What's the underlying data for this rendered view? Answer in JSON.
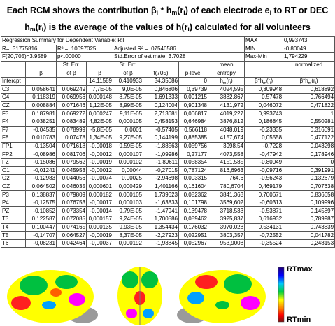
{
  "header": {
    "line1": [
      "Each RCM shows the contribution β",
      "i",
      " * h",
      "m",
      "(r",
      "i",
      ") of each electrode e",
      "i",
      " to RT or DEC"
    ],
    "line2": [
      "h",
      "m",
      "(r",
      "i",
      ") is the average of  the values of h(r",
      "i",
      ") calculated for  all volunteers"
    ]
  },
  "summary": [
    [
      "Regression Summary for Dependent Variable: RT",
      "MAX",
      "0,993743"
    ],
    [
      "R= .31775816",
      "R² = .10097025",
      "Adjusted R² = .07546586",
      "MIN",
      "-0,80049"
    ],
    [
      "F(20,705)=3.9589",
      "p<.00000",
      "Std.Error of estimate: 3.7028",
      "Max-Min",
      "1,794229"
    ]
  ],
  "table": {
    "header_rows": [
      [
        null,
        null,
        "St. Err.",
        null,
        "St. Err.",
        null,
        null,
        "mean",
        null,
        "normalized"
      ],
      [
        null,
        "β",
        "of β",
        "β",
        "of β",
        "t(705)",
        "p-level",
        "entropy",
        null,
        null
      ],
      [
        "Intercpt",
        null,
        null,
        "14,11589",
        "0,410933",
        "34,35086",
        "0",
        [
          "h",
          "m",
          "(r",
          "i",
          ")"
        ],
        [
          "β*h",
          "m",
          "(r",
          "i",
          ")"
        ],
        [
          "β*h",
          "m",
          "(r",
          "i",
          ")"
        ]
      ]
    ],
    "rows": [
      [
        "C3",
        "0,058641",
        "0,069249",
        "7,7E-05",
        "9,0E-05",
        "0,846806",
        "0,39739",
        "4024,595",
        "0,309948",
        "0,618892"
      ],
      [
        "C4",
        "0,118319",
        "0,069956",
        "0,000148",
        "8,75E-05",
        "1,691333",
        "0,091215",
        "3882,867",
        "0,57478",
        "0,766494"
      ],
      [
        "CZ",
        "0,008884",
        "0,071646",
        "1,12E-05",
        "8,99E-05",
        "0,124004",
        "0,901348",
        "4131,972",
        "0,046072",
        "0,471822"
      ],
      [
        "F3",
        "0,187981",
        "0,069272",
        "0,000247",
        "9,11E-05",
        "2,713681",
        "0,006817",
        "4019,227",
        "0,993743",
        "1"
      ],
      [
        "F4",
        "0,038251",
        "0,083489",
        "4,82E-05",
        "0,000105",
        "0,458153",
        "0,646984",
        "3876,812",
        "0,186845",
        "0,550281"
      ],
      [
        "F7",
        "-0,04535",
        "0,078999",
        "-5,8E-05",
        "0,0001",
        "-0,57405",
        "0,566118",
        "4048,019",
        "-0,23335",
        "0,316091"
      ],
      [
        "F8",
        "0,010783",
        "0,07478",
        "1,34E-05",
        "9,27E-05",
        "0,144199",
        "0,885385",
        "4157,674",
        "0,05558",
        "0,477122"
      ],
      [
        "FP1",
        "-0,13504",
        "0,071618",
        "-0,00018",
        "9,59E-05",
        "-1,88563",
        "0,059756",
        "3998,54",
        "-0,7228",
        "0,043298"
      ],
      [
        "FP2",
        "-0,08986",
        "0,081706",
        "-0,00012",
        "0,000107",
        "-1,09986",
        "0,27177",
        "4073,558",
        "-0,47942",
        "0,178946"
      ],
      [
        "FZ",
        "-0,15086",
        "0,079562",
        "-0,00019",
        "0,000102",
        "-1,89611",
        "0,058354",
        "4151,585",
        "-0,80049",
        "0"
      ],
      [
        "O1",
        "-0,01241",
        "0,045953",
        "-0,00012",
        "0,00044",
        "-0,27015",
        "0,787124",
        "816,6963",
        "-0,09716",
        "0,391991"
      ],
      [
        "O2",
        "-0,12983",
        "0,044056",
        "-0,00074",
        "0,00025",
        "-2,94698",
        "0,003315",
        "764,6",
        "-0,56243",
        "0,132679"
      ],
      [
        "OZ",
        "0,064502",
        "0,046035",
        "0,000601",
        "0,000429",
        "1,401166",
        "0,161604",
        "780,6704",
        "0,469179",
        "0,707638"
      ],
      [
        "P3",
        "0,138837",
        "0,079809",
        "0,000182",
        "0,000105",
        "1,739623",
        "0,082362",
        "3841,363",
        "0,700671",
        "0,836658"
      ],
      [
        "P4",
        "-0,12575",
        "0,076753",
        "-0,00017",
        "0,000103",
        "-1,63833",
        "0,101798",
        "3569,602",
        "-0,60313",
        "0,109996"
      ],
      [
        "PZ",
        "-0,10852",
        "0,073354",
        "-0,00014",
        "9,79E-05",
        "-1,47941",
        "0,139478",
        "3718,533",
        "-0,53871",
        "0,145897"
      ],
      [
        "T3",
        "0,122587",
        "0,072085",
        "0,000157",
        "9,24E-05",
        "1,700586",
        "0,089462",
        "3925,837",
        "0,616932",
        "0,789987"
      ],
      [
        "T4",
        "0,100447",
        "0,074165",
        "0,000135",
        "9,93E-05",
        "1,354434",
        "0,176032",
        "3970,028",
        "0,534131",
        "0,743839"
      ],
      [
        "T5",
        "-0,14707",
        "0,064527",
        "-0,00019",
        "8,37E-05",
        "-2,27923",
        "0,022951",
        "3803,357",
        "-0,72552",
        "0,041782"
      ],
      [
        "T6",
        "-0,08231",
        "0,042464",
        "-0,00037",
        "0,000192",
        "-1,93845",
        "0,052967",
        "953,9008",
        "-0,35524",
        "0,248153"
      ]
    ]
  },
  "legend": {
    "max": "RTmax",
    "min": "RTmin"
  }
}
